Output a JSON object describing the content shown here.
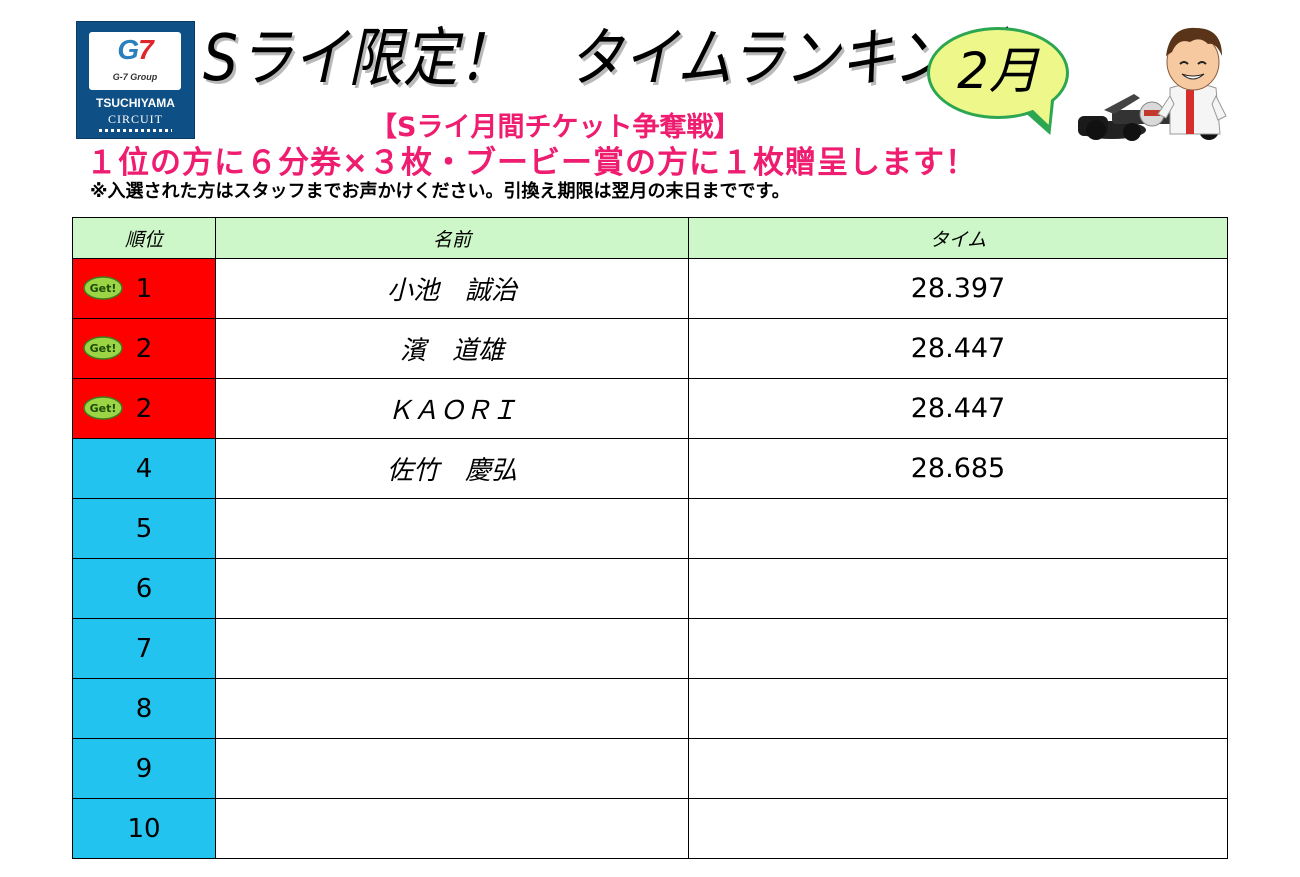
{
  "logo": {
    "mark_left": "G",
    "mark_right": "7",
    "group": "G-7 Group",
    "line1": "TSUCHIYAMA",
    "line2": "CIRCUIT"
  },
  "title": "Sライ限定！　タイムランキング",
  "month": "2月",
  "subtitle": "【Sライ月間チケット争奪戦】",
  "prize": "１位の方に６分券×３枚・ブービー賞の方に１枚贈呈します！",
  "note": "※入選された方はスタッフまでお声かけください。引換え期限は翌月の末日までです。",
  "table": {
    "headers": [
      "順位",
      "名前",
      "タイム"
    ],
    "get_badge": "Get!",
    "rows": [
      {
        "rank": "1",
        "name": "小池　誠治",
        "time": "28.397",
        "get": true
      },
      {
        "rank": "2",
        "name": "濱　道雄",
        "time": "28.447",
        "get": true
      },
      {
        "rank": "2",
        "name": "ＫＡＯＲＩ",
        "time": "28.447",
        "get": true
      },
      {
        "rank": "4",
        "name": "佐竹　慶弘",
        "time": "28.685",
        "get": false
      },
      {
        "rank": "5",
        "name": "",
        "time": "",
        "get": false
      },
      {
        "rank": "6",
        "name": "",
        "time": "",
        "get": false
      },
      {
        "rank": "7",
        "name": "",
        "time": "",
        "get": false
      },
      {
        "rank": "8",
        "name": "",
        "time": "",
        "get": false
      },
      {
        "rank": "9",
        "name": "",
        "time": "",
        "get": false
      },
      {
        "rank": "10",
        "name": "",
        "time": "",
        "get": false
      }
    ]
  },
  "colors": {
    "accent_pink": "#ee1d70",
    "winner_red": "#ff0000",
    "rank_blue": "#22c3ee",
    "header_green": "#cdf7c8",
    "bubble_yellow": "#eef78a",
    "bubble_border": "#2ca650",
    "logo_navy": "#0e4f86"
  },
  "icons": {
    "get_badge": "get-badge-icon",
    "mascot": "kart-driver-mascot"
  }
}
